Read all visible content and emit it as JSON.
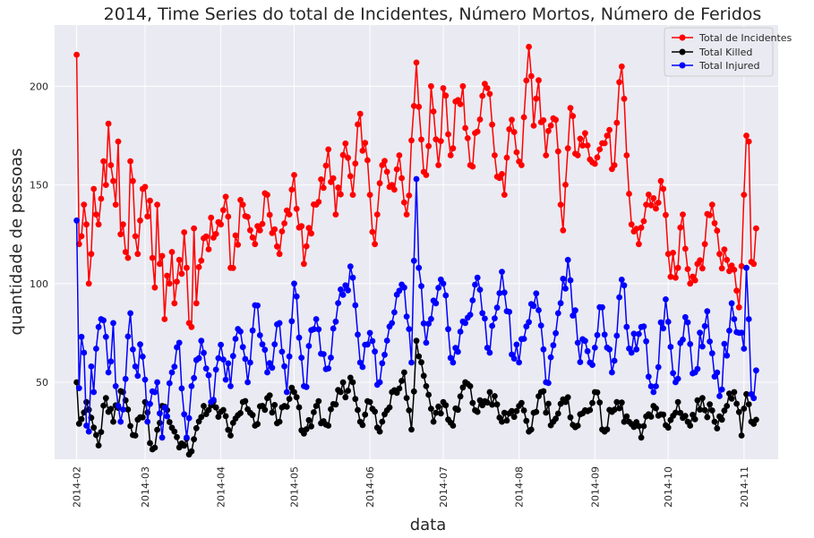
{
  "chart_data": {
    "type": "line",
    "title": "2014, Time Series do total de Incidentes, Número Mortos, Número de Feridos",
    "xlabel": "data",
    "ylabel": "quantidade de pessoas",
    "x_start": "2014-02-01",
    "x_end": "2014-11-06",
    "xlim": [
      "2014-01-23",
      "2014-11-15"
    ],
    "ylim": [
      11,
      231
    ],
    "x_ticks": [
      "2014-02",
      "2014-03",
      "2014-04",
      "2014-05",
      "2014-06",
      "2014-07",
      "2014-08",
      "2014-09",
      "2014-10",
      "2014-11"
    ],
    "y_ticks": [
      50,
      100,
      150,
      200
    ],
    "grid": true,
    "legend_position": "top-right",
    "background": "#eaeaf2",
    "series": [
      {
        "name": "Total de Incidentes",
        "color": "#ff0000",
        "anchors": [
          [
            "2014-02-01",
            216
          ],
          [
            "2014-02-02",
            120
          ],
          [
            "2014-02-03",
            124
          ],
          [
            "2014-02-04",
            140
          ],
          [
            "2014-02-05",
            130
          ],
          [
            "2014-02-06",
            100
          ],
          [
            "2014-02-07",
            115
          ],
          [
            "2014-02-08",
            148
          ],
          [
            "2014-02-09",
            135
          ],
          [
            "2014-02-10",
            130
          ],
          [
            "2014-02-11",
            143
          ],
          [
            "2014-02-12",
            162
          ],
          [
            "2014-02-13",
            150
          ],
          [
            "2014-02-14",
            181
          ],
          [
            "2014-02-15",
            160
          ],
          [
            "2014-02-16",
            152
          ],
          [
            "2014-02-17",
            140
          ],
          [
            "2014-02-18",
            172
          ],
          [
            "2014-02-19",
            125
          ],
          [
            "2014-02-20",
            130
          ],
          [
            "2014-02-21",
            116
          ],
          [
            "2014-02-22",
            113
          ],
          [
            "2014-02-23",
            162
          ],
          [
            "2014-02-24",
            152
          ],
          [
            "2014-02-25",
            124
          ],
          [
            "2014-02-26",
            115
          ],
          [
            "2014-02-27",
            132
          ],
          [
            "2014-02-28",
            148
          ],
          [
            "2014-03-01",
            149
          ],
          [
            "2014-03-02",
            134
          ],
          [
            "2014-03-03",
            142
          ],
          [
            "2014-03-04",
            113
          ],
          [
            "2014-03-05",
            98
          ],
          [
            "2014-03-06",
            140
          ],
          [
            "2014-03-07",
            110
          ],
          [
            "2014-03-08",
            114
          ],
          [
            "2014-03-09",
            82
          ],
          [
            "2014-03-10",
            104
          ],
          [
            "2014-03-11",
            100
          ],
          [
            "2014-03-12",
            116
          ],
          [
            "2014-03-13",
            90
          ],
          [
            "2014-03-14",
            101
          ],
          [
            "2014-03-15",
            112
          ],
          [
            "2014-03-16",
            105
          ],
          [
            "2014-03-17",
            126
          ],
          [
            "2014-03-18",
            108
          ],
          [
            "2014-03-19",
            80
          ],
          [
            "2014-03-20",
            78
          ],
          [
            "2014-03-21",
            128
          ],
          [
            "2014-03-22",
            90
          ],
          [
            "2014-03-25",
            123
          ],
          [
            "2014-04-01",
            130
          ],
          [
            "2014-04-03",
            144
          ],
          [
            "2014-04-05",
            108
          ],
          [
            "2014-04-10",
            140
          ],
          [
            "2014-04-15",
            120
          ],
          [
            "2014-04-20",
            145
          ],
          [
            "2014-04-25",
            115
          ],
          [
            "2014-05-01",
            155
          ],
          [
            "2014-05-05",
            110
          ],
          [
            "2014-05-10",
            140
          ],
          [
            "2014-05-15",
            168
          ],
          [
            "2014-05-18",
            135
          ],
          [
            "2014-05-22",
            171
          ],
          [
            "2014-05-25",
            145
          ],
          [
            "2014-05-28",
            186
          ],
          [
            "2014-06-01",
            145
          ],
          [
            "2014-06-03",
            120
          ],
          [
            "2014-06-06",
            160
          ],
          [
            "2014-06-10",
            150
          ],
          [
            "2014-06-13",
            165
          ],
          [
            "2014-06-16",
            135
          ],
          [
            "2014-06-19",
            190
          ],
          [
            "2014-06-20",
            212
          ],
          [
            "2014-06-22",
            173
          ],
          [
            "2014-06-24",
            155
          ],
          [
            "2014-06-26",
            200
          ],
          [
            "2014-06-29",
            160
          ],
          [
            "2014-07-01",
            199
          ],
          [
            "2014-07-04",
            165
          ],
          [
            "2014-07-07",
            193
          ],
          [
            "2014-07-09",
            200
          ],
          [
            "2014-07-12",
            160
          ],
          [
            "2014-07-15",
            177
          ],
          [
            "2014-07-19",
            199
          ],
          [
            "2014-07-22",
            165
          ],
          [
            "2014-07-26",
            145
          ],
          [
            "2014-07-29",
            183
          ],
          [
            "2014-08-02",
            160
          ],
          [
            "2014-08-05",
            220
          ],
          [
            "2014-08-07",
            180
          ],
          [
            "2014-08-09",
            203
          ],
          [
            "2014-08-12",
            165
          ],
          [
            "2014-08-16",
            183
          ],
          [
            "2014-08-18",
            140
          ],
          [
            "2014-08-19",
            127
          ],
          [
            "2014-08-22",
            189
          ],
          [
            "2014-08-25",
            165
          ],
          [
            "2014-08-29",
            170
          ],
          [
            "2014-09-03",
            168
          ],
          [
            "2014-09-06",
            175
          ],
          [
            "2014-09-09",
            160
          ],
          [
            "2014-09-12",
            210
          ],
          [
            "2014-09-14",
            165
          ],
          [
            "2014-09-16",
            130
          ],
          [
            "2014-09-19",
            120
          ],
          [
            "2014-09-22",
            140
          ],
          [
            "2014-09-26",
            138
          ],
          [
            "2014-09-28",
            152
          ],
          [
            "2014-10-01",
            115
          ],
          [
            "2014-10-04",
            103
          ],
          [
            "2014-10-07",
            135
          ],
          [
            "2014-10-10",
            100
          ],
          [
            "2014-10-13",
            110
          ],
          [
            "2014-10-16",
            120
          ],
          [
            "2014-10-19",
            140
          ],
          [
            "2014-10-22",
            115
          ],
          [
            "2014-10-25",
            112
          ],
          [
            "2014-10-28",
            107
          ],
          [
            "2014-10-30",
            88
          ],
          [
            "2014-11-01",
            145
          ],
          [
            "2014-11-02",
            175
          ],
          [
            "2014-11-03",
            172
          ],
          [
            "2014-11-04",
            111
          ],
          [
            "2014-11-05",
            110
          ],
          [
            "2014-11-06",
            128
          ]
        ]
      },
      {
        "name": "Total Killed",
        "color": "#000000",
        "anchors": [
          [
            "2014-02-01",
            50
          ],
          [
            "2014-02-02",
            29
          ],
          [
            "2014-02-05",
            40
          ],
          [
            "2014-02-08",
            27
          ],
          [
            "2014-02-10",
            18
          ],
          [
            "2014-02-13",
            42
          ],
          [
            "2014-02-16",
            30
          ],
          [
            "2014-02-20",
            45
          ],
          [
            "2014-02-25",
            23
          ],
          [
            "2014-03-01",
            40
          ],
          [
            "2014-03-04",
            16
          ],
          [
            "2014-03-08",
            38
          ],
          [
            "2014-03-13",
            25
          ],
          [
            "2014-03-16",
            19
          ],
          [
            "2014-03-20",
            15
          ],
          [
            "2014-03-25",
            38
          ],
          [
            "2014-04-01",
            35
          ],
          [
            "2014-04-05",
            23
          ],
          [
            "2014-04-10",
            40
          ],
          [
            "2014-04-15",
            28
          ],
          [
            "2014-04-20",
            42
          ],
          [
            "2014-04-25",
            30
          ],
          [
            "2014-05-01",
            45
          ],
          [
            "2014-05-05",
            24
          ],
          [
            "2014-05-10",
            38
          ],
          [
            "2014-05-15",
            28
          ],
          [
            "2014-05-20",
            45
          ],
          [
            "2014-05-25",
            50
          ],
          [
            "2014-05-28",
            30
          ],
          [
            "2014-06-01",
            40
          ],
          [
            "2014-06-05",
            25
          ],
          [
            "2014-06-10",
            45
          ],
          [
            "2014-06-15",
            55
          ],
          [
            "2014-06-18",
            26
          ],
          [
            "2014-06-20",
            71
          ],
          [
            "2014-06-24",
            48
          ],
          [
            "2014-06-27",
            30
          ],
          [
            "2014-07-01",
            40
          ],
          [
            "2014-07-05",
            28
          ],
          [
            "2014-07-10",
            50
          ],
          [
            "2014-07-15",
            35
          ],
          [
            "2014-07-20",
            45
          ],
          [
            "2014-07-25",
            30
          ],
          [
            "2014-08-01",
            38
          ],
          [
            "2014-08-05",
            25
          ],
          [
            "2014-08-10",
            45
          ],
          [
            "2014-08-15",
            30
          ],
          [
            "2014-08-20",
            40
          ],
          [
            "2014-08-25",
            28
          ],
          [
            "2014-09-01",
            45
          ],
          [
            "2014-09-05",
            25
          ],
          [
            "2014-09-10",
            40
          ],
          [
            "2014-09-15",
            30
          ],
          [
            "2014-09-20",
            22
          ],
          [
            "2014-09-25",
            38
          ],
          [
            "2014-10-01",
            27
          ],
          [
            "2014-10-05",
            40
          ],
          [
            "2014-10-10",
            28
          ],
          [
            "2014-10-15",
            42
          ],
          [
            "2014-10-20",
            30
          ],
          [
            "2014-10-25",
            38
          ],
          [
            "2014-10-28",
            45
          ],
          [
            "2014-10-31",
            23
          ],
          [
            "2014-11-02",
            44
          ],
          [
            "2014-11-04",
            30
          ],
          [
            "2014-11-06",
            31
          ]
        ]
      },
      {
        "name": "Total Injured",
        "color": "#0000ff",
        "anchors": [
          [
            "2014-02-01",
            132
          ],
          [
            "2014-02-02",
            47
          ],
          [
            "2014-02-03",
            73
          ],
          [
            "2014-02-04",
            65
          ],
          [
            "2014-02-05",
            28
          ],
          [
            "2014-02-06",
            25
          ],
          [
            "2014-02-07",
            58
          ],
          [
            "2014-02-08",
            45
          ],
          [
            "2014-02-10",
            78
          ],
          [
            "2014-02-11",
            82
          ],
          [
            "2014-02-13",
            73
          ],
          [
            "2014-02-14",
            55
          ],
          [
            "2014-02-16",
            80
          ],
          [
            "2014-02-17",
            48
          ],
          [
            "2014-02-19",
            30
          ],
          [
            "2014-02-23",
            85
          ],
          [
            "2014-02-25",
            58
          ],
          [
            "2014-02-28",
            63
          ],
          [
            "2014-03-02",
            30
          ],
          [
            "2014-03-06",
            50
          ],
          [
            "2014-03-08",
            22
          ],
          [
            "2014-03-12",
            55
          ],
          [
            "2014-03-15",
            70
          ],
          [
            "2014-03-18",
            22
          ],
          [
            "2014-03-20",
            48
          ],
          [
            "2014-03-24",
            71
          ],
          [
            "2014-03-28",
            40
          ],
          [
            "2014-04-01",
            69
          ],
          [
            "2014-04-05",
            48
          ],
          [
            "2014-04-08",
            77
          ],
          [
            "2014-04-12",
            50
          ],
          [
            "2014-04-15",
            89
          ],
          [
            "2014-04-20",
            55
          ],
          [
            "2014-04-25",
            80
          ],
          [
            "2014-04-28",
            45
          ],
          [
            "2014-05-01",
            100
          ],
          [
            "2014-05-05",
            48
          ],
          [
            "2014-05-10",
            82
          ],
          [
            "2014-05-15",
            57
          ],
          [
            "2014-05-20",
            97
          ],
          [
            "2014-05-25",
            103
          ],
          [
            "2014-05-28",
            60
          ],
          [
            "2014-06-01",
            75
          ],
          [
            "2014-06-05",
            50
          ],
          [
            "2014-06-10",
            80
          ],
          [
            "2014-06-15",
            98
          ],
          [
            "2014-06-18",
            60
          ],
          [
            "2014-06-20",
            153
          ],
          [
            "2014-06-21",
            108
          ],
          [
            "2014-06-24",
            70
          ],
          [
            "2014-06-28",
            90
          ],
          [
            "2014-07-01",
            100
          ],
          [
            "2014-07-05",
            60
          ],
          [
            "2014-07-10",
            80
          ],
          [
            "2014-07-15",
            103
          ],
          [
            "2014-07-20",
            65
          ],
          [
            "2014-07-25",
            106
          ],
          [
            "2014-07-30",
            62
          ],
          [
            "2014-08-03",
            72
          ],
          [
            "2014-08-08",
            95
          ],
          [
            "2014-08-12",
            50
          ],
          [
            "2014-08-17",
            85
          ],
          [
            "2014-08-21",
            112
          ],
          [
            "2014-08-25",
            70
          ],
          [
            "2014-08-30",
            60
          ],
          [
            "2014-09-04",
            88
          ],
          [
            "2014-09-08",
            55
          ],
          [
            "2014-09-12",
            102
          ],
          [
            "2014-09-16",
            65
          ],
          [
            "2014-09-20",
            78
          ],
          [
            "2014-09-25",
            45
          ],
          [
            "2014-09-30",
            92
          ],
          [
            "2014-10-04",
            50
          ],
          [
            "2014-10-08",
            83
          ],
          [
            "2014-10-12",
            55
          ],
          [
            "2014-10-17",
            86
          ],
          [
            "2014-10-22",
            43
          ],
          [
            "2014-10-27",
            90
          ],
          [
            "2014-10-30",
            75
          ],
          [
            "2014-11-01",
            67
          ],
          [
            "2014-11-02",
            108
          ],
          [
            "2014-11-03",
            82
          ],
          [
            "2014-11-04",
            44
          ],
          [
            "2014-11-05",
            42
          ],
          [
            "2014-11-06",
            56
          ]
        ]
      }
    ]
  }
}
